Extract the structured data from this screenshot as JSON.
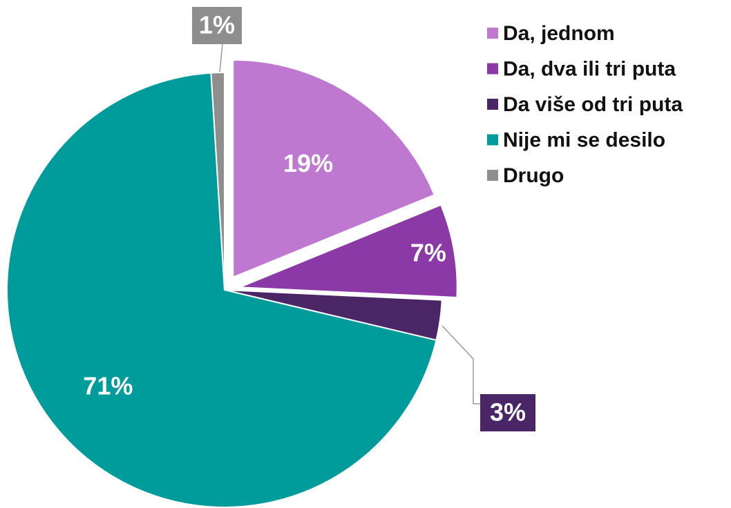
{
  "chart_data": {
    "type": "pie",
    "categories": [
      "Da, jednom",
      "Da, dva ili tri puta",
      "Da više od tri puta",
      "Nije mi se desilo",
      "Drugo"
    ],
    "values": [
      19,
      7,
      3,
      71,
      1
    ],
    "value_labels": [
      "19%",
      "7%",
      "3%",
      "71%",
      "1%"
    ],
    "colors": [
      "#bf78d0",
      "#8b39a6",
      "#4a2666",
      "#009c9c",
      "#8e8e8e"
    ],
    "legend": "right"
  }
}
